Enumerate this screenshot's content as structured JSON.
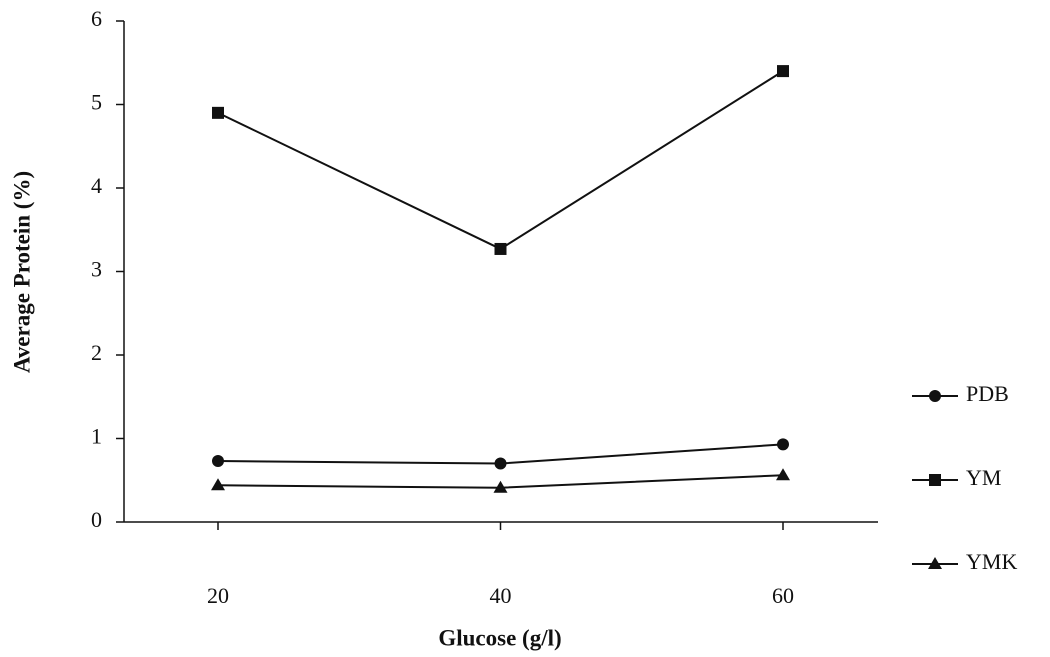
{
  "chart_data": {
    "type": "line",
    "x_label": "Glucose (g/l)",
    "y_label": "Average Protein (%)",
    "categories": [
      "20",
      "40",
      "60"
    ],
    "series": [
      {
        "name": "PDB",
        "color": "#111111",
        "marker": "circle",
        "values": [
          0.73,
          0.7,
          0.93
        ]
      },
      {
        "name": "YM",
        "color": "#111111",
        "marker": "square",
        "values": [
          4.9,
          3.27,
          5.4
        ]
      },
      {
        "name": "YMK",
        "color": "#111111",
        "marker": "triangle",
        "values": [
          0.44,
          0.41,
          0.56
        ]
      }
    ],
    "ylim": [
      0,
      6
    ],
    "yticks": [
      0,
      1,
      2,
      3,
      4,
      5,
      6
    ],
    "grid": false
  }
}
